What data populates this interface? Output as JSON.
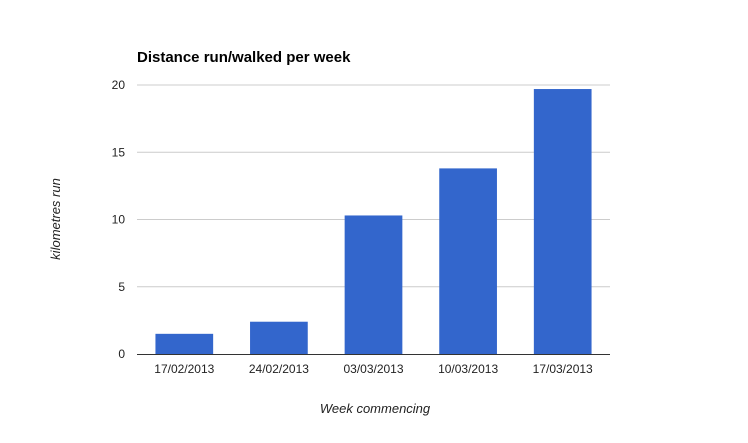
{
  "chart_data": {
    "type": "bar",
    "title": "Distance run/walked per week",
    "xlabel": "Week commencing",
    "ylabel": "kilometres run",
    "categories": [
      "17/02/2013",
      "24/02/2013",
      "03/03/2013",
      "10/03/2013",
      "17/03/2013"
    ],
    "values": [
      1.5,
      2.4,
      10.3,
      13.8,
      19.7
    ],
    "ylim": [
      0,
      20
    ],
    "yticks": [
      "0",
      "5",
      "10",
      "15",
      "20"
    ],
    "grid": true,
    "legend": "none",
    "bar_color": "#3366cc"
  }
}
